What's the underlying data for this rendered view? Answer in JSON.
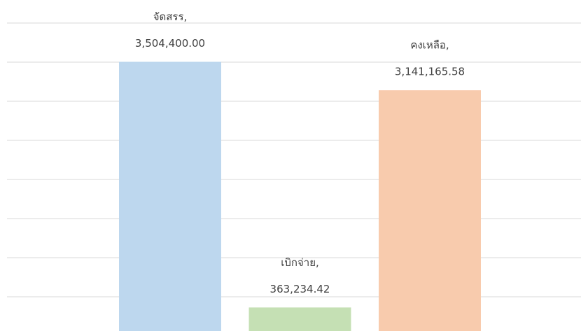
{
  "chart_data": {
    "type": "bar",
    "categories": [
      "จัดสรร,",
      "เบิกจ่าย,",
      "คงเหลือ,"
    ],
    "values": [
      3504400.0,
      363234.42,
      3141165.58
    ],
    "value_labels": [
      "3,504,400.00",
      "363,234.42",
      "3,141,165.58"
    ],
    "colors": [
      "#bdd7ee",
      "#c5e0b4",
      "#f8cbad"
    ],
    "ylim": [
      0,
      4000000
    ],
    "yticks": [
      500000,
      1000000,
      1500000,
      2000000,
      2500000,
      3000000,
      3500000,
      4000000
    ],
    "grid": true
  }
}
